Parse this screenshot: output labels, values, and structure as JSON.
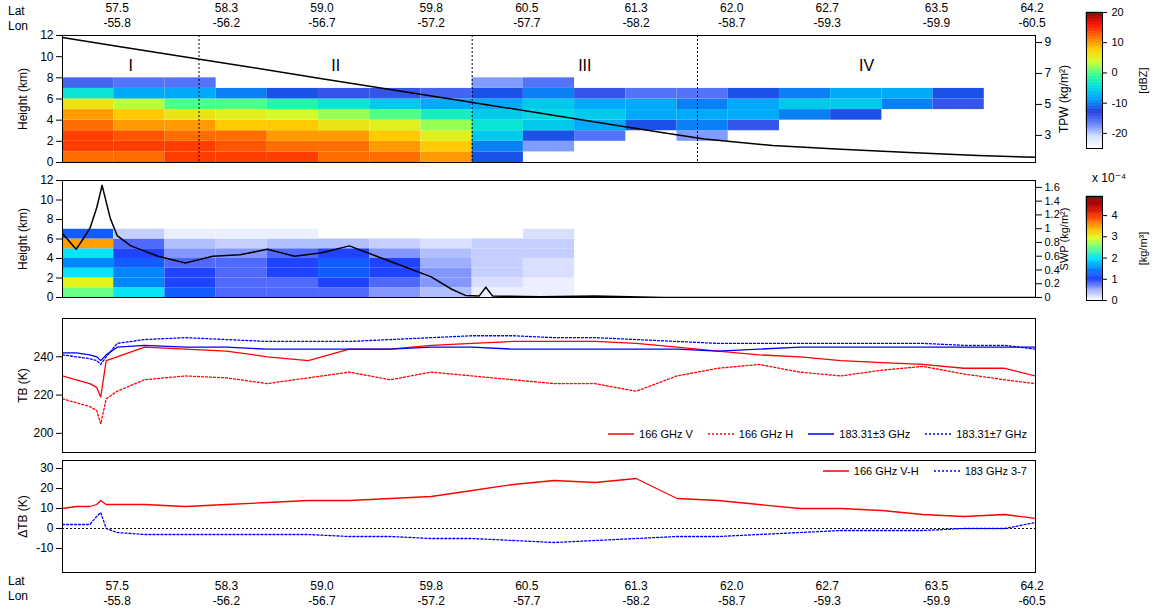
{
  "chart_data": [
    {
      "type": "heatmap",
      "x_label": "Lat",
      "x2_label": "Lon",
      "xlim": [
        57.1,
        64.225
      ],
      "xticks": [
        57.5,
        58.3,
        {
          "value": 59,
          "label": "59.0"
        },
        59.8,
        60.5,
        61.3,
        {
          "value": 62,
          "label": "62.0"
        },
        62.7,
        63.5,
        64.2
      ],
      "lon_ticks": [
        -55.8,
        -56.2,
        -56.7,
        -57.2,
        -57.7,
        -58.2,
        -58.7,
        -59.3,
        -59.9,
        -60.5
      ],
      "ylabel": "Height (km)",
      "ylim": [
        0,
        12
      ],
      "yticks": [
        0,
        2,
        4,
        6,
        8,
        10,
        12
      ],
      "x_edges": [
        57.1,
        57.475,
        57.85,
        58.225,
        58.6,
        58.975,
        59.35,
        59.725,
        60.1,
        60.475,
        60.85,
        61.225,
        61.6,
        61.975,
        62.35,
        62.725,
        63.1,
        63.475,
        63.85,
        64.225
      ],
      "z_edges": [
        0,
        1,
        2,
        3,
        4,
        5,
        6,
        7,
        8,
        9,
        10,
        11,
        12
      ],
      "values": [
        [
          12,
          12,
          14,
          14,
          14,
          12,
          12,
          10,
          -12,
          null,
          null,
          null,
          null,
          null,
          null,
          null,
          null,
          null,
          null
        ],
        [
          14,
          14,
          14,
          13,
          12,
          12,
          10,
          8,
          -10,
          -18,
          null,
          null,
          null,
          null,
          null,
          null,
          null,
          null,
          null
        ],
        [
          14,
          13,
          12,
          12,
          10,
          10,
          8,
          5,
          -6,
          -12,
          -16,
          null,
          -18,
          null,
          null,
          null,
          null,
          null,
          null
        ],
        [
          12,
          10,
          10,
          8,
          8,
          6,
          5,
          2,
          -4,
          -6,
          -8,
          -12,
          -10,
          -14,
          null,
          null,
          null,
          null,
          null
        ],
        [
          10,
          8,
          6,
          5,
          4,
          2,
          0,
          -3,
          -6,
          -5,
          -6,
          -8,
          -8,
          -8,
          -10,
          -12,
          null,
          null,
          null
        ],
        [
          6,
          3,
          0,
          0,
          -2,
          -4,
          -6,
          -8,
          -8,
          -6,
          -8,
          -8,
          -10,
          -8,
          -6,
          -6,
          -10,
          -14,
          null
        ],
        [
          -4,
          -8,
          -8,
          -10,
          -12,
          -14,
          -14,
          -15,
          -12,
          -10,
          -14,
          -16,
          -16,
          -12,
          -10,
          -8,
          -8,
          -12,
          null
        ],
        [
          -15,
          -16,
          -16,
          null,
          null,
          null,
          null,
          null,
          -18,
          -16,
          null,
          null,
          null,
          null,
          null,
          null,
          null,
          null,
          null
        ],
        [
          null,
          null,
          null,
          null,
          null,
          null,
          null,
          null,
          null,
          null,
          null,
          null,
          null,
          null,
          null,
          null,
          null,
          null,
          null
        ],
        [
          null,
          null,
          null,
          null,
          null,
          null,
          null,
          null,
          null,
          null,
          null,
          null,
          null,
          null,
          null,
          null,
          null,
          null,
          null
        ],
        [
          null,
          null,
          null,
          null,
          null,
          null,
          null,
          null,
          null,
          null,
          null,
          null,
          null,
          null,
          null,
          null,
          null,
          null,
          null
        ],
        [
          null,
          null,
          null,
          null,
          null,
          null,
          null,
          null,
          null,
          null,
          null,
          null,
          null,
          null,
          null,
          null,
          null,
          null,
          null
        ]
      ],
      "colorbar": {
        "label": "[dBZ]",
        "range": [
          -25,
          20
        ],
        "ticks": [
          -20,
          -10,
          0,
          10,
          20
        ]
      },
      "regions": {
        "labels": [
          "I",
          "II",
          "III",
          "IV"
        ],
        "boundaries": [
          58.1,
          60.1,
          61.75
        ],
        "line_style": "dotted"
      },
      "y2label": "TPW (kg/m²)",
      "y2lim": [
        1.25,
        9.45
      ],
      "y2ticks": [
        3,
        5,
        7,
        9
      ],
      "series": [
        {
          "axis": "y2",
          "color": "#000000",
          "line_style": "solid",
          "x": [
            57.1,
            57.5,
            58.0,
            58.5,
            59.0,
            59.5,
            60.0,
            60.5,
            61.0,
            61.5,
            61.8,
            62.3,
            62.8,
            63.3,
            63.8,
            64.225
          ],
          "values": [
            9.32,
            8.76,
            8.06,
            7.37,
            6.66,
            5.97,
            5.27,
            4.57,
            3.86,
            3.17,
            2.77,
            2.35,
            2.1,
            1.9,
            1.71,
            1.58
          ]
        }
      ]
    },
    {
      "type": "heatmap",
      "tick_labels": "y",
      "xlim": [
        57.1,
        64.225
      ],
      "ylabel": "Height (km)",
      "ylim": [
        0,
        12
      ],
      "yticks": [
        0,
        2,
        4,
        6,
        8,
        10,
        12
      ],
      "x_edges": [
        57.1,
        57.475,
        57.85,
        58.225,
        58.6,
        58.975,
        59.35,
        59.725,
        60.1,
        60.475,
        60.85,
        61.225,
        61.6,
        61.975,
        62.35,
        62.725,
        63.1,
        63.475,
        63.85,
        64.225
      ],
      "z_edges": [
        0,
        1,
        2,
        3,
        4,
        5,
        6,
        7
      ],
      "values": [
        [
          2.5,
          2,
          1.2,
          0.8,
          0.8,
          0.8,
          0.6,
          0.4,
          0.1,
          0.1,
          null,
          null,
          null,
          null,
          null,
          null,
          null,
          null,
          null
        ],
        [
          3,
          1.5,
          1,
          0.8,
          0.8,
          1,
          0.8,
          0.6,
          0.2,
          0.1,
          null,
          null,
          null,
          null,
          null,
          null,
          null,
          null,
          null
        ],
        [
          2,
          1.5,
          1,
          0.8,
          1,
          1.2,
          1,
          0.6,
          0.3,
          0.2,
          null,
          null,
          null,
          null,
          null,
          null,
          null,
          null,
          null
        ],
        [
          1.5,
          1.2,
          0.8,
          0.8,
          1,
          1.2,
          1,
          0.5,
          0.3,
          0.2,
          null,
          null,
          null,
          null,
          null,
          null,
          null,
          null,
          null
        ],
        [
          2,
          1,
          0.6,
          0.6,
          0.8,
          1,
          0.6,
          0.4,
          0.3,
          0.3,
          null,
          null,
          null,
          null,
          null,
          null,
          null,
          null,
          null
        ],
        [
          3.5,
          0.8,
          0.4,
          0.3,
          0.4,
          0.4,
          0.3,
          0.2,
          0.3,
          0.3,
          null,
          null,
          null,
          null,
          null,
          null,
          null,
          null,
          null
        ],
        [
          1.2,
          0.3,
          0.1,
          0.1,
          0.1,
          null,
          null,
          null,
          null,
          0.2,
          null,
          null,
          null,
          null,
          null,
          null,
          null,
          null,
          null
        ]
      ],
      "colorbar": {
        "label": "[kg/m³]",
        "multiplier": "x 10⁻⁴",
        "range": [
          0,
          4.9
        ],
        "ticks": [
          0,
          1,
          2,
          3,
          4
        ]
      },
      "y2label": "SWP (kg/m²)",
      "y2lim": [
        0,
        1.7
      ],
      "y2ticks": [
        0,
        0.2,
        0.4,
        0.6,
        0.8,
        1,
        1.2,
        1.4,
        1.6
      ],
      "series": [
        {
          "axis": "y2",
          "color": "#000000",
          "line_style": "solid",
          "x": [
            57.1,
            57.2,
            57.25,
            57.3,
            57.35,
            57.39,
            57.45,
            57.5,
            57.6,
            57.8,
            58.0,
            58.2,
            58.4,
            58.6,
            58.8,
            59.0,
            59.2,
            59.4,
            59.6,
            59.8,
            59.95,
            60.05,
            60.15,
            60.2,
            60.25,
            60.6,
            61.0,
            61.5,
            64.225
          ],
          "values": [
            0.93,
            0.7,
            0.85,
            1,
            1.3,
            1.63,
            1.15,
            0.9,
            0.75,
            0.6,
            0.5,
            0.6,
            0.62,
            0.7,
            0.6,
            0.65,
            0.75,
            0.6,
            0.45,
            0.3,
            0.12,
            0.03,
            0.02,
            0.15,
            0.02,
            0.01,
            0.02,
            0,
            0
          ]
        }
      ]
    },
    {
      "type": "line",
      "tick_labels": "y",
      "xlim": [
        57.1,
        64.225
      ],
      "ylabel": "TB (K)",
      "ylim": [
        190,
        260
      ],
      "yticks": [
        200,
        220,
        240
      ],
      "legend": "bottom-right",
      "series": [
        {
          "name": "166 GHz V",
          "color": "#ff0000",
          "line_style": "solid",
          "x": [
            57.1,
            57.2,
            57.3,
            57.35,
            57.38,
            57.42,
            57.5,
            57.7,
            58.0,
            58.3,
            58.6,
            58.9,
            59.2,
            59.5,
            59.8,
            60.1,
            60.4,
            60.7,
            61.0,
            61.3,
            61.6,
            61.9,
            62.2,
            62.5,
            62.8,
            63.1,
            63.4,
            63.7,
            64.0,
            64.225
          ],
          "values": [
            230,
            228,
            226,
            224,
            219,
            238,
            240,
            245,
            244,
            243,
            240,
            238,
            244,
            244,
            246,
            247,
            248,
            248,
            248,
            247,
            245,
            243,
            241,
            240,
            238,
            237,
            236,
            234,
            234,
            230
          ]
        },
        {
          "name": "166 GHz H",
          "color": "#ff0000",
          "line_style": "dotted",
          "x": [
            57.1,
            57.2,
            57.3,
            57.35,
            57.38,
            57.42,
            57.5,
            57.7,
            58.0,
            58.3,
            58.6,
            58.9,
            59.2,
            59.5,
            59.8,
            60.1,
            60.4,
            60.7,
            61.0,
            61.3,
            61.6,
            61.9,
            62.2,
            62.5,
            62.8,
            63.1,
            63.4,
            63.7,
            64.0,
            64.225
          ],
          "values": [
            218,
            216,
            214,
            212,
            205,
            218,
            222,
            228,
            230,
            229,
            226,
            229,
            232,
            228,
            232,
            230,
            228,
            226,
            226,
            222,
            230,
            234,
            236,
            232,
            230,
            233,
            235,
            231,
            228,
            226
          ]
        },
        {
          "name": "183.31±3 GHz",
          "color": "#0000ff",
          "line_style": "solid",
          "x": [
            57.1,
            57.2,
            57.3,
            57.35,
            57.38,
            57.42,
            57.5,
            57.7,
            58.0,
            58.3,
            58.6,
            58.9,
            59.2,
            59.5,
            59.8,
            60.1,
            60.4,
            60.7,
            61.0,
            61.3,
            61.6,
            61.9,
            62.2,
            62.5,
            62.8,
            63.1,
            63.4,
            63.7,
            64.0,
            64.225
          ],
          "values": [
            242,
            242,
            241,
            240,
            238,
            241,
            245,
            246,
            245,
            245,
            244,
            244,
            244,
            244,
            245,
            245,
            244,
            244,
            244,
            244,
            244,
            243,
            244,
            245,
            245,
            245,
            245,
            245,
            245,
            245
          ]
        },
        {
          "name": "183.31±7 GHz",
          "color": "#0000ff",
          "line_style": "dotted",
          "x": [
            57.1,
            57.2,
            57.3,
            57.35,
            57.38,
            57.42,
            57.5,
            57.7,
            58.0,
            58.3,
            58.6,
            58.9,
            59.2,
            59.5,
            59.8,
            60.1,
            60.4,
            60.7,
            61.0,
            61.3,
            61.6,
            61.9,
            62.2,
            62.5,
            62.8,
            63.1,
            63.4,
            63.7,
            64.0,
            64.225
          ],
          "values": [
            241,
            240,
            239,
            238,
            236,
            240,
            247,
            249,
            250,
            249,
            248,
            248,
            248,
            249,
            250,
            251,
            251,
            250,
            250,
            249,
            248,
            247,
            247,
            247,
            247,
            247,
            247,
            246,
            246,
            244
          ]
        }
      ]
    },
    {
      "type": "line",
      "x_label": "Lat",
      "x2_label": "Lon",
      "xlim": [
        57.1,
        64.225
      ],
      "xticks": [
        57.5,
        58.3,
        {
          "value": 59,
          "label": "59.0"
        },
        59.8,
        60.5,
        61.3,
        {
          "value": 62,
          "label": "62.0"
        },
        62.7,
        63.5,
        64.2
      ],
      "lon_ticks": [
        -55.8,
        -56.2,
        -56.7,
        -57.2,
        -57.7,
        -58.2,
        -58.7,
        -59.3,
        -59.9,
        -60.5
      ],
      "ylabel": "ΔTB (K)",
      "ylim": [
        -22,
        34
      ],
      "yticks": [
        -10,
        0,
        10,
        20,
        30
      ],
      "legend": "top-right",
      "zero_line": {
        "value": 0,
        "color": "#000000",
        "line_style": "dotted"
      },
      "series": [
        {
          "name": "166 GHz V-H",
          "color": "#ff0000",
          "line_style": "solid",
          "x": [
            57.1,
            57.2,
            57.3,
            57.35,
            57.38,
            57.42,
            57.5,
            57.7,
            58.0,
            58.3,
            58.6,
            58.9,
            59.2,
            59.5,
            59.8,
            60.1,
            60.4,
            60.7,
            61.0,
            61.3,
            61.6,
            61.9,
            62.2,
            62.5,
            62.8,
            63.1,
            63.4,
            63.7,
            64.0,
            64.225
          ],
          "values": [
            10,
            11,
            11,
            12,
            14,
            12,
            12,
            12,
            11,
            12,
            13,
            14,
            14,
            15,
            16,
            19,
            22,
            24,
            23,
            25,
            15,
            14,
            12,
            10,
            10,
            9,
            7,
            6,
            7,
            5
          ]
        },
        {
          "name": "183 GHz 3-7",
          "color": "#0000ff",
          "line_style": "dotted",
          "x": [
            57.1,
            57.2,
            57.3,
            57.35,
            57.38,
            57.42,
            57.5,
            57.7,
            58.0,
            58.3,
            58.6,
            58.9,
            59.2,
            59.5,
            59.8,
            60.1,
            60.4,
            60.7,
            61.0,
            61.3,
            61.6,
            61.9,
            62.2,
            62.5,
            62.8,
            63.1,
            63.4,
            63.7,
            64.0,
            64.225
          ],
          "values": [
            2,
            2,
            2,
            6,
            8,
            0,
            -2,
            -3,
            -3,
            -3,
            -3,
            -3,
            -4,
            -4,
            -5,
            -5,
            -6,
            -7,
            -6,
            -5,
            -4,
            -4,
            -3,
            -2,
            -1,
            -1,
            -1,
            0,
            0,
            3
          ]
        }
      ]
    }
  ]
}
